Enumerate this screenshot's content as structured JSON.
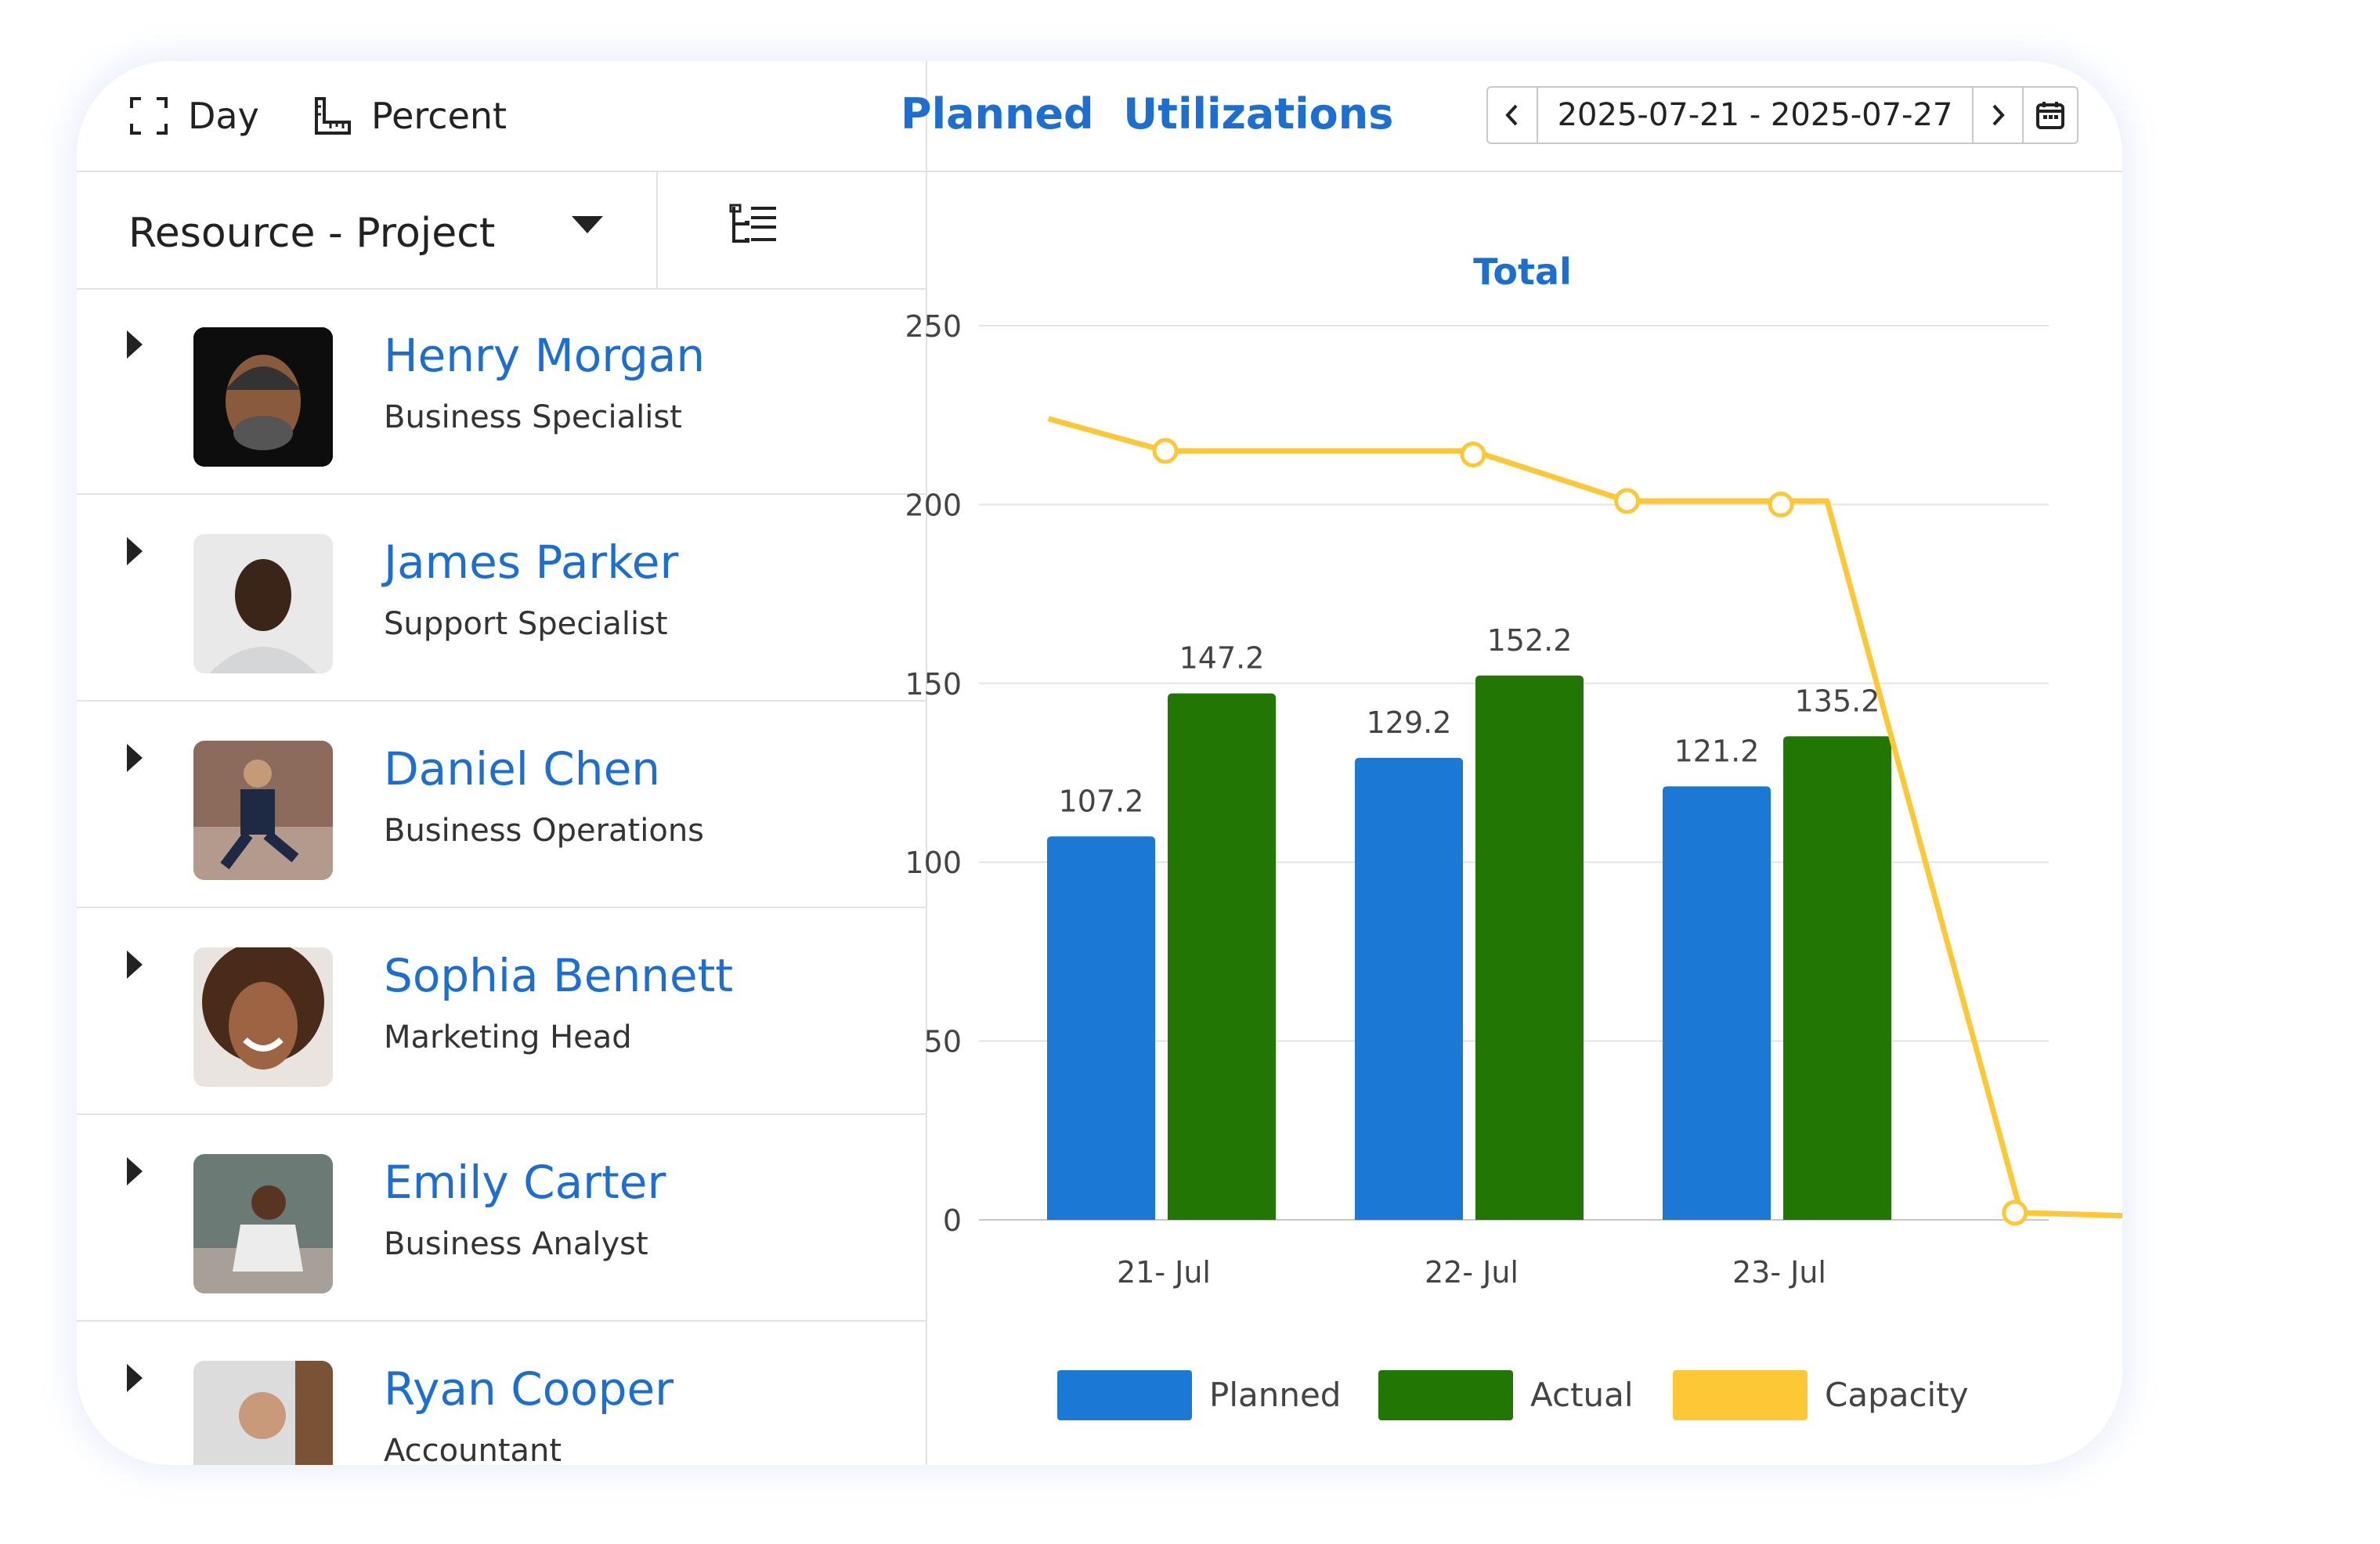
{
  "toolbar": {
    "day_label": "Day",
    "percent_label": "Percent"
  },
  "grouping": {
    "selected": "Resource - Project"
  },
  "resources": [
    {
      "name": "Henry Morgan",
      "role": "Business Specialist"
    },
    {
      "name": "James Parker",
      "role": "Support Specialist"
    },
    {
      "name": "Daniel Chen",
      "role": "Business Operations"
    },
    {
      "name": "Sophia Bennett",
      "role": "Marketing Head"
    },
    {
      "name": "Emily Carter",
      "role": "Business Analyst"
    },
    {
      "name": "Ryan Cooper",
      "role": "Accountant"
    }
  ],
  "header": {
    "title": "Planned  Utilizations",
    "date_range": "2025-07-21 - 2025-07-27"
  },
  "colors": {
    "planned": "#1b78d4",
    "actual": "#217604",
    "capacity": "#fdc735",
    "accent": "#1c6fd0"
  },
  "chart_data": {
    "type": "bar",
    "title": "Total",
    "categories": [
      "21- Jul",
      "22- Jul",
      "23- Jul"
    ],
    "series": [
      {
        "name": "Planned",
        "values": [
          107.2,
          129.2,
          121.2
        ]
      },
      {
        "name": "Actual",
        "values": [
          147.2,
          152.2,
          135.2
        ]
      }
    ],
    "line_series": {
      "name": "Capacity",
      "points": [
        [
          -0.38,
          224
        ],
        [
          0,
          215
        ],
        [
          1,
          215
        ],
        [
          1.5,
          201
        ],
        [
          2,
          201
        ],
        [
          2.15,
          201
        ],
        [
          2.78,
          2
        ],
        [
          3.18,
          1
        ]
      ],
      "markers": [
        [
          0,
          215
        ],
        [
          1,
          214
        ],
        [
          1.5,
          201
        ],
        [
          2,
          200
        ],
        [
          2.76,
          2
        ]
      ]
    },
    "ylim": [
      0,
      250
    ],
    "yticks": [
      0,
      50,
      100,
      150,
      200,
      250
    ],
    "grid": true,
    "legend": "bottom"
  }
}
